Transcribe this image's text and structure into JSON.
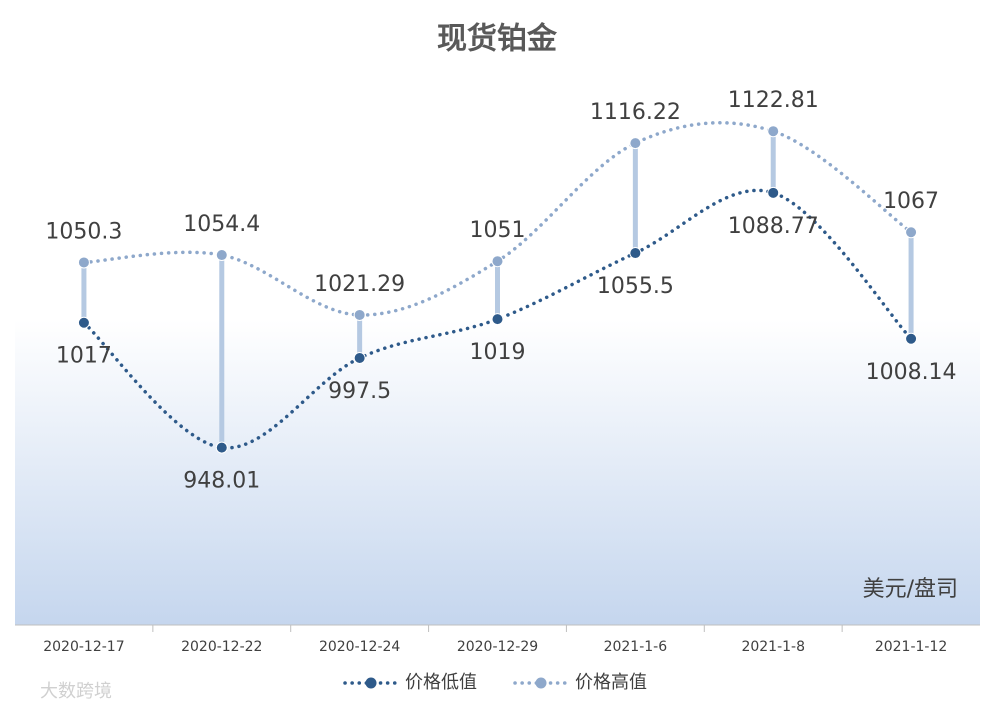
{
  "chart_data": {
    "type": "line",
    "title": "现货铂金",
    "unit_label": "美元/盘司",
    "watermark": "大数跨境",
    "categories": [
      "2020-12-17",
      "2020-12-22",
      "2020-12-24",
      "2020-12-29",
      "2021-1-6",
      "2021-1-8",
      "2021-1-12"
    ],
    "series": [
      {
        "name": "价格低值",
        "color": "#2e5a8a",
        "values": [
          1017,
          948.01,
          997.5,
          1019,
          1055.5,
          1088.77,
          1008.14
        ]
      },
      {
        "name": "价格高值",
        "color": "#8ea8cb",
        "values": [
          1050.3,
          1054.4,
          1021.29,
          1051,
          1116.22,
          1122.81,
          1067
        ]
      }
    ],
    "high_low_color": "#b5c9e2",
    "ylim": [
      850,
      1150
    ]
  }
}
